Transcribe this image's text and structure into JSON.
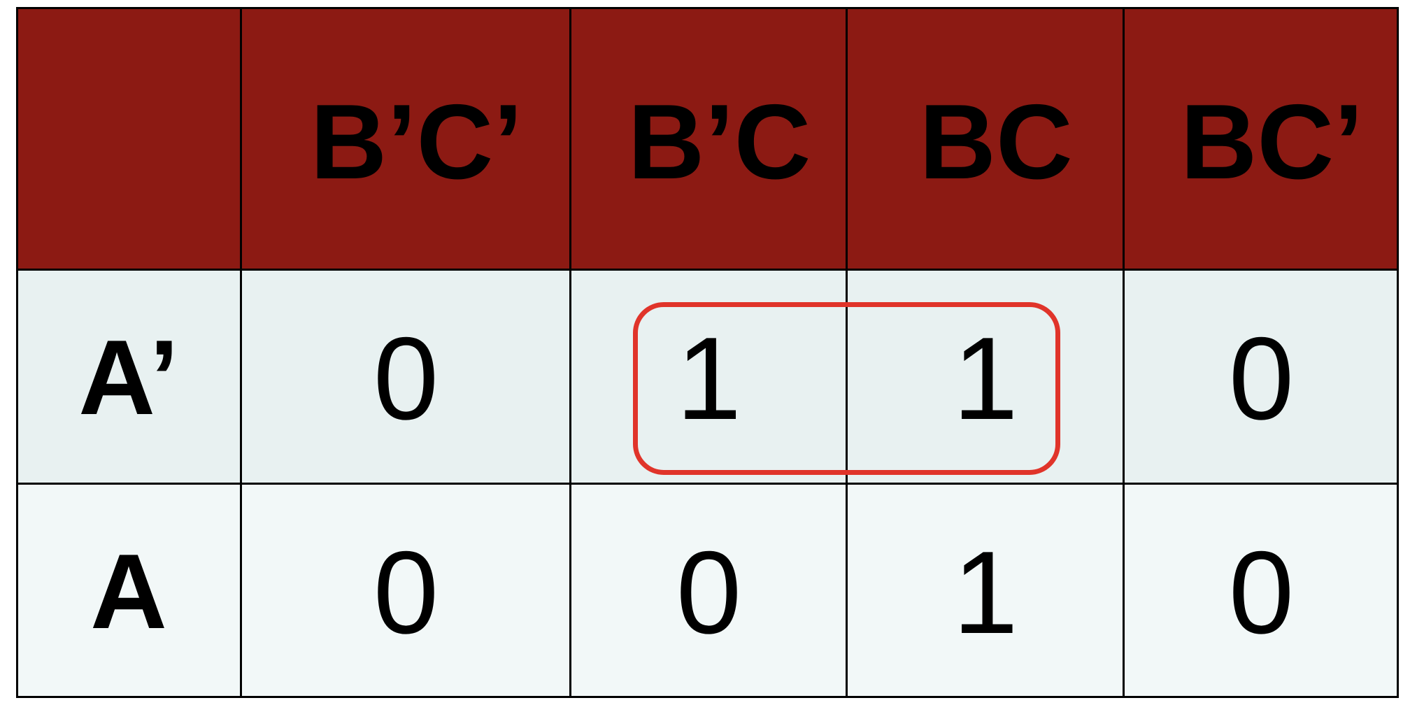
{
  "kmap": {
    "corner": "",
    "columns": [
      "B’C’",
      "B’C",
      "BC",
      "BC’"
    ],
    "rows": [
      {
        "label": "A’",
        "values": [
          "0",
          "1",
          "1",
          "0"
        ]
      },
      {
        "label": "A",
        "values": [
          "0",
          "0",
          "1",
          "0"
        ]
      }
    ],
    "group": {
      "row": "A’",
      "columns": [
        "B’C",
        "BC"
      ]
    },
    "colors": {
      "header_bg": "#8c1a13",
      "row1_bg": "#e8f1f1",
      "row2_bg": "#f2f8f8",
      "group_outline": "#e0342a",
      "grid": "#000000"
    }
  }
}
